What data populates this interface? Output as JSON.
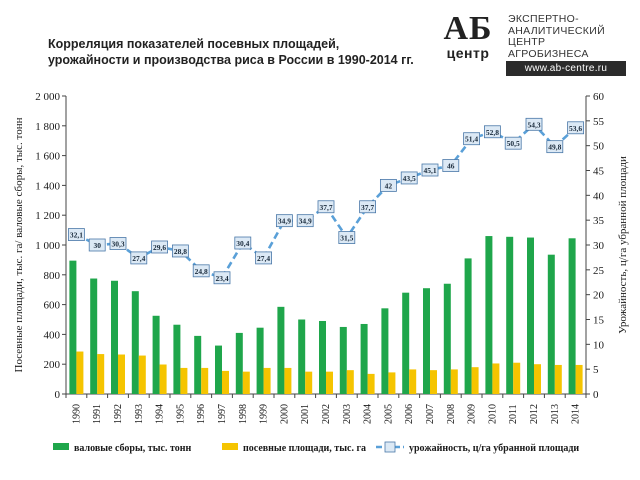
{
  "title_line1": "Корреляция показателей посевных площадей,",
  "title_line2": "урожайности и производства риса в России в 1990-2014 гг.",
  "logo": {
    "mark_top": "АБ",
    "mark_bottom": "центр",
    "text_lines": [
      "ЭКСПЕРТНО-",
      "АНАЛИТИЧЕСКИЙ",
      "ЦЕНТР",
      "АГРОБИЗНЕСА"
    ],
    "url": "www.ab-centre.ru"
  },
  "colors": {
    "production": "#1fa64b",
    "area": "#f5c400",
    "yield_line": "#5aa0d8",
    "marker_fill": "#dce9f5",
    "marker_stroke": "#4a78a8"
  },
  "chart_data": {
    "type": "bar",
    "categories": [
      "1990",
      "1991",
      "1992",
      "1993",
      "1994",
      "1995",
      "1996",
      "1997",
      "1998",
      "1999",
      "2000",
      "2001",
      "2002",
      "2003",
      "2004",
      "2005",
      "2006",
      "2007",
      "2008",
      "2009",
      "2010",
      "2011",
      "2012",
      "2013",
      "2014"
    ],
    "series": [
      {
        "name": "валовые сборы, тыс. тонн",
        "type": "bar",
        "axis": "left",
        "values": [
          895,
          775,
          760,
          690,
          525,
          465,
          390,
          325,
          410,
          445,
          585,
          500,
          490,
          450,
          470,
          575,
          680,
          710,
          740,
          910,
          1060,
          1055,
          1050,
          935,
          1045
        ]
      },
      {
        "name": "посевные площади, тыс. га",
        "type": "bar",
        "axis": "left",
        "values": [
          285,
          268,
          265,
          258,
          198,
          175,
          175,
          155,
          150,
          175,
          175,
          150,
          150,
          160,
          135,
          145,
          165,
          160,
          165,
          180,
          205,
          210,
          200,
          195,
          195
        ]
      },
      {
        "name": "урожайность, ц/га убранной площади",
        "type": "line",
        "axis": "right",
        "values": [
          32.1,
          30,
          30.3,
          27.4,
          29.6,
          28.8,
          24.8,
          23.4,
          30.4,
          27.4,
          34.9,
          34.9,
          37.7,
          31.5,
          37.7,
          42,
          43.5,
          45.1,
          46,
          51.4,
          52.8,
          50.5,
          54.3,
          49.8,
          53.6
        ],
        "labels": [
          "32,1",
          "30",
          "30,3",
          "27,4",
          "29,6",
          "28,8",
          "24,8",
          "23,4",
          "30,4",
          "27,4",
          "34,9",
          "34,9",
          "37,7",
          "31,5",
          "37,7",
          "42",
          "43,5",
          "45,1",
          "46",
          "51,4",
          "52,8",
          "50,5",
          "54,3",
          "49,8",
          "53,6"
        ]
      }
    ],
    "ylabel": "Посевные площади, тыс. га/ валовые сборы, тыс. тонн",
    "y2label": "Урожайность, ц/га убранной площади",
    "ylim": [
      0,
      2000
    ],
    "y2lim": [
      0,
      60
    ],
    "y_ticks": [
      "0",
      "200",
      "400",
      "600",
      "800",
      "1 000",
      "1 200",
      "1 400",
      "1 600",
      "1 800",
      "2 000"
    ],
    "y2_ticks": [
      "0",
      "5",
      "10",
      "15",
      "20",
      "25",
      "30",
      "35",
      "40",
      "45",
      "50",
      "55",
      "60"
    ],
    "grid": false,
    "legend_position": "bottom"
  }
}
